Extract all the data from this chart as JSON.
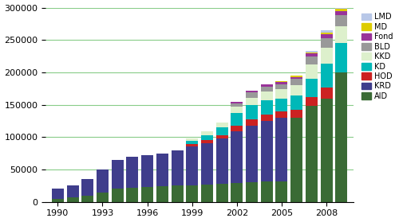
{
  "years": [
    1990,
    1991,
    1992,
    1993,
    1994,
    1995,
    1996,
    1997,
    1998,
    1999,
    2000,
    2001,
    2002,
    2003,
    2004,
    2005,
    2006,
    2007,
    2008,
    2009
  ],
  "series": {
    "AID": [
      5000,
      7000,
      10000,
      15000,
      20000,
      22000,
      23000,
      24000,
      25000,
      26000,
      27000,
      28000,
      29000,
      30000,
      31000,
      32000,
      130000,
      148000,
      160000,
      200000
    ],
    "KRD": [
      15000,
      18000,
      25000,
      35000,
      45000,
      48000,
      49000,
      51000,
      55000,
      60000,
      63000,
      70000,
      80000,
      88000,
      94000,
      98000,
      0,
      0,
      0,
      0
    ],
    "HOD": [
      0,
      0,
      0,
      0,
      0,
      0,
      0,
      0,
      0,
      3000,
      5000,
      5000,
      8000,
      9000,
      10000,
      10000,
      12000,
      14000,
      16000,
      0
    ],
    "KD": [
      0,
      0,
      0,
      0,
      0,
      0,
      0,
      0,
      0,
      5000,
      8000,
      12000,
      20000,
      22000,
      22000,
      20000,
      22000,
      28000,
      38000,
      45000
    ],
    "KKD": [
      0,
      0,
      0,
      0,
      0,
      0,
      0,
      0,
      0,
      4000,
      6000,
      8000,
      10000,
      12000,
      13000,
      14000,
      16000,
      22000,
      24000,
      26000
    ],
    "BLD": [
      0,
      0,
      0,
      0,
      0,
      0,
      0,
      0,
      0,
      0,
      0,
      0,
      5000,
      8000,
      8000,
      8000,
      10000,
      12000,
      15000,
      18000
    ],
    "Fond": [
      0,
      0,
      0,
      0,
      0,
      0,
      0,
      0,
      0,
      0,
      0,
      0,
      3000,
      3000,
      3000,
      3000,
      3000,
      5000,
      6000,
      6000
    ],
    "MD": [
      0,
      0,
      0,
      0,
      0,
      0,
      0,
      0,
      0,
      0,
      0,
      0,
      0,
      0,
      1000,
      1000,
      1500,
      2000,
      2500,
      3000
    ],
    "LMD": [
      0,
      0,
      0,
      0,
      0,
      0,
      0,
      0,
      0,
      0,
      0,
      0,
      0,
      0,
      0,
      0,
      1000,
      2000,
      3000,
      5000
    ]
  },
  "colors": {
    "AID": "#3a6b35",
    "KRD": "#3f3d8c",
    "HOD": "#cc2222",
    "KD": "#00b8b8",
    "KKD": "#ddf0cc",
    "BLD": "#999999",
    "Fond": "#993399",
    "MD": "#ddcc00",
    "LMD": "#b8c8e8"
  },
  "ylim": [
    0,
    300000
  ],
  "yticks": [
    0,
    50000,
    100000,
    150000,
    200000,
    250000,
    300000
  ],
  "xtick_labels": [
    "1990",
    "1993",
    "1996",
    "1999",
    "2002",
    "2005",
    "2008"
  ],
  "xtick_positions": [
    1990,
    1993,
    1996,
    1999,
    2002,
    2005,
    2008
  ],
  "grid_color": "#88cc88",
  "background_color": "#ffffff",
  "legend_order": [
    "LMD",
    "MD",
    "Fond",
    "BLD",
    "KKD",
    "KD",
    "HOD",
    "KRD",
    "AID"
  ],
  "stack_order": [
    "AID",
    "KRD",
    "HOD",
    "KD",
    "KKD",
    "BLD",
    "Fond",
    "MD",
    "LMD"
  ],
  "bar_width": 0.8,
  "xlim_left": 1989.2,
  "xlim_right": 2009.8
}
